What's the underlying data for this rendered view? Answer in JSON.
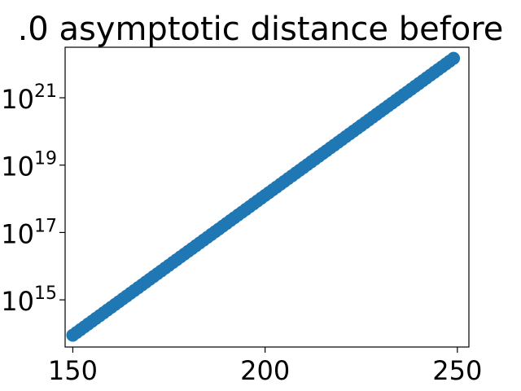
{
  "chart_data": {
    "type": "scatter",
    "title": ".0 asymptotic distance before",
    "xlabel": "",
    "ylabel": "",
    "xlim": [
      148,
      253
    ],
    "ylim_log10": [
      13.6,
      22.5
    ],
    "y_scale": "log",
    "grid": false,
    "x_ticks": [
      {
        "value": 150,
        "label": "150"
      },
      {
        "value": 200,
        "label": "200"
      },
      {
        "value": 250,
        "label": "250"
      }
    ],
    "y_ticks": [
      {
        "exp": 15,
        "base": "10",
        "sup": "15"
      },
      {
        "exp": 17,
        "base": "10",
        "sup": "17"
      },
      {
        "exp": 19,
        "base": "10",
        "sup": "19"
      },
      {
        "exp": 21,
        "base": "10",
        "sup": "21"
      }
    ],
    "series": [
      {
        "color": "#1f77b4",
        "x_start": 150,
        "x_end": 249,
        "x_step": 1,
        "log10_y_start": 13.95,
        "log10_y_end": 22.17
      }
    ]
  }
}
